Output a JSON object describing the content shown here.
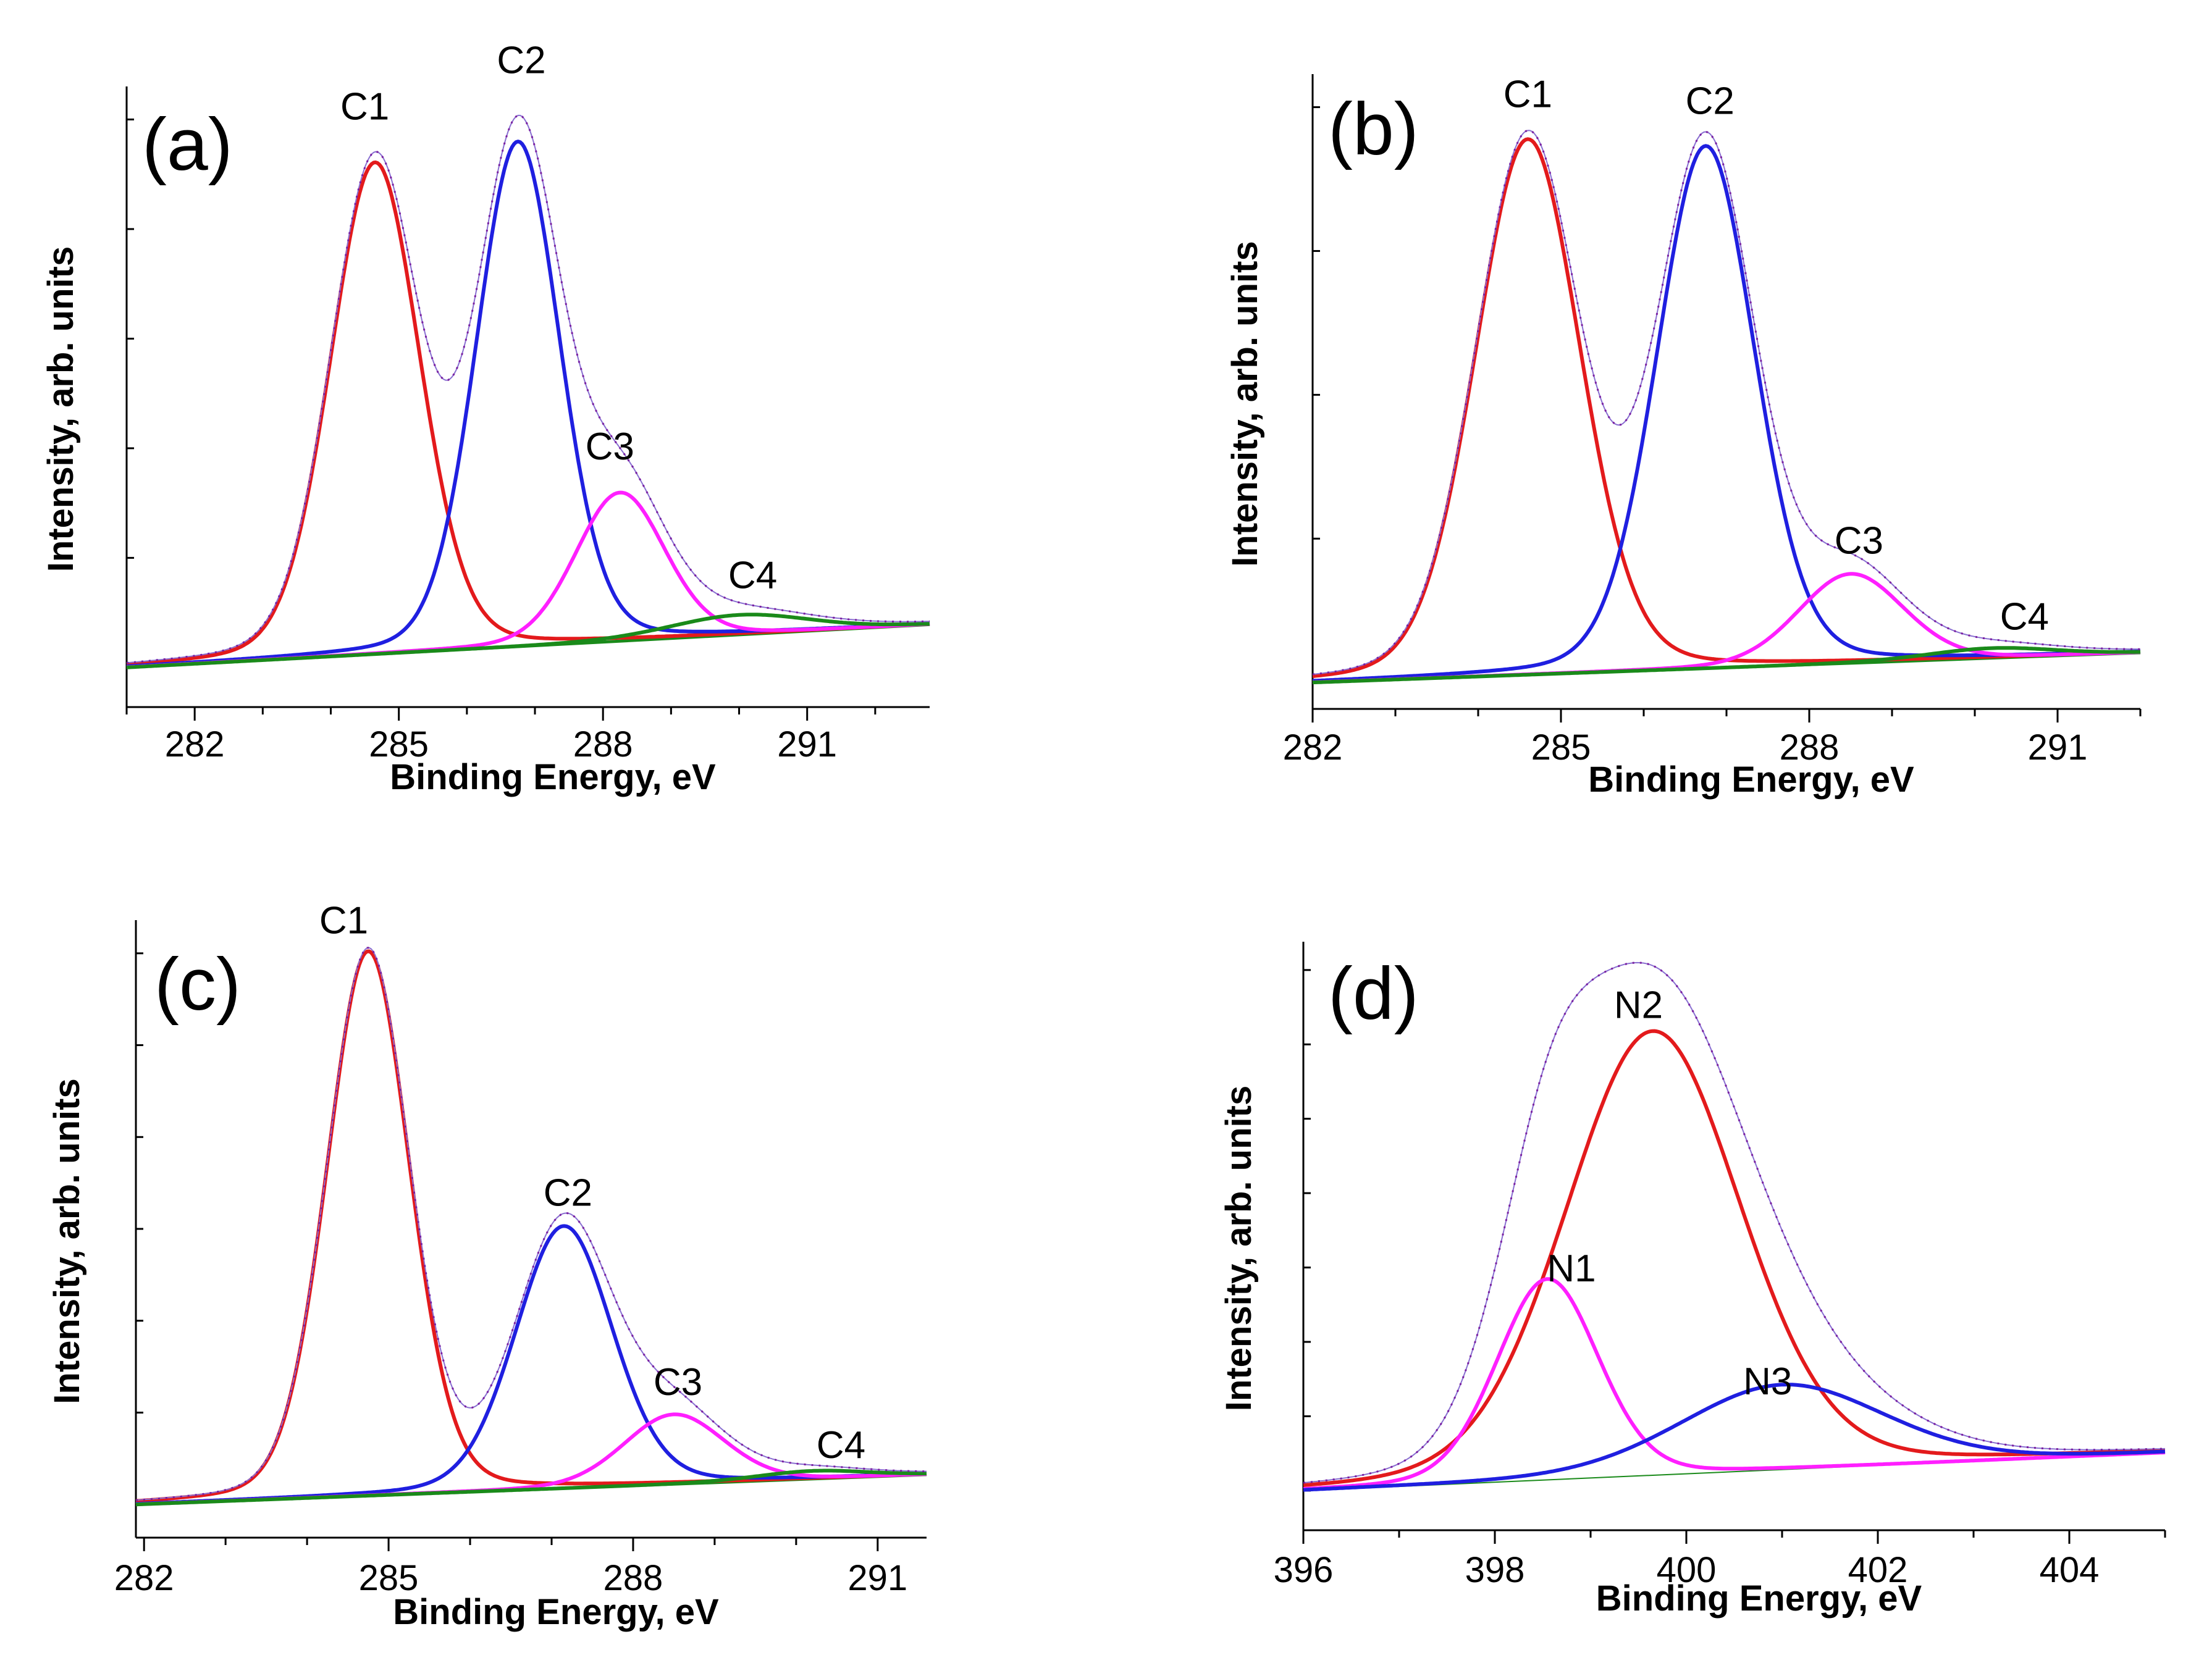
{
  "chart_data": [
    {
      "type": "line",
      "panel_label": "(a)",
      "xlabel": "Binding Energy, eV",
      "ylabel": "Intensity, arb. units",
      "xlim": [
        281.0,
        292.8
      ],
      "ylim": [
        -0.06,
        0.88
      ],
      "x_ticks": [
        282,
        285,
        288,
        291
      ],
      "y_tick_count": 5,
      "background": {
        "x0": 281.0,
        "y0": 0.0,
        "x1": 292.8,
        "y1": 0.065
      },
      "series": [
        {
          "name": "C1",
          "color": "#e31a1c",
          "center": 284.65,
          "height": 0.745,
          "fwhm": 1.55
        },
        {
          "name": "C2",
          "color": "#1f1fe0",
          "center": 286.75,
          "height": 0.765,
          "fwhm": 1.45
        },
        {
          "name": "C3",
          "color": "#ff1fff",
          "center": 288.25,
          "height": 0.225,
          "fwhm": 1.55
        },
        {
          "name": "C4",
          "color": "#1a8a1a",
          "center": 290.0,
          "height": 0.03,
          "fwhm": 2.4
        }
      ],
      "peak_labels": [
        {
          "text": "C1",
          "x": 284.5,
          "y": 0.83
        },
        {
          "text": "C2",
          "x": 286.8,
          "y": 0.9
        },
        {
          "text": "C3",
          "x": 288.1,
          "y": 0.315
        },
        {
          "text": "C4",
          "x": 290.2,
          "y": 0.12
        }
      ]
    },
    {
      "type": "line",
      "panel_label": "(b)",
      "xlabel": "Binding Energy, eV",
      "ylabel": "Intensity, arb. units",
      "xlim": [
        282.0,
        292.0
      ],
      "ylim": [
        -0.04,
        0.92
      ],
      "x_ticks": [
        282,
        285,
        288,
        291
      ],
      "y_tick_count": 4,
      "background": {
        "x0": 282.0,
        "y0": 0.0,
        "x1": 292.0,
        "y1": 0.045
      },
      "series": [
        {
          "name": "C1",
          "color": "#e31a1c",
          "center": 284.6,
          "height": 0.81,
          "fwhm": 1.5
        },
        {
          "name": "C2",
          "color": "#1f1fe0",
          "center": 286.75,
          "height": 0.79,
          "fwhm": 1.4
        },
        {
          "name": "C3",
          "color": "#ff1fff",
          "center": 288.5,
          "height": 0.135,
          "fwhm": 1.5
        },
        {
          "name": "C4",
          "color": "#1a8a1a",
          "center": 290.2,
          "height": 0.015,
          "fwhm": 1.8
        }
      ],
      "peak_labels": [
        {
          "text": "C1",
          "x": 284.6,
          "y": 0.87
        },
        {
          "text": "C2",
          "x": 286.8,
          "y": 0.86
        },
        {
          "text": "C3",
          "x": 288.6,
          "y": 0.195
        },
        {
          "text": "C4",
          "x": 290.6,
          "y": 0.08
        }
      ]
    },
    {
      "type": "line",
      "panel_label": "(c)",
      "xlabel": "Binding Energy, eV",
      "ylabel": "Intensity, arb. units",
      "xlim": [
        281.9,
        291.6
      ],
      "ylim": [
        -0.05,
        0.88
      ],
      "x_ticks": [
        282,
        285,
        288,
        291
      ],
      "y_tick_count": 6,
      "background": {
        "x0": 281.9,
        "y0": 0.0,
        "x1": 291.6,
        "y1": 0.045
      },
      "series": [
        {
          "name": "C1",
          "color": "#e31a1c",
          "center": 284.75,
          "height": 0.82,
          "fwhm": 1.2
        },
        {
          "name": "C2",
          "color": "#1f1fe0",
          "center": 287.15,
          "height": 0.395,
          "fwhm": 1.4
        },
        {
          "name": "C3",
          "color": "#ff1fff",
          "center": 288.5,
          "height": 0.105,
          "fwhm": 1.45
        },
        {
          "name": "C4",
          "color": "#1a8a1a",
          "center": 290.2,
          "height": 0.012,
          "fwhm": 1.6
        }
      ],
      "peak_labels": [
        {
          "text": "C1",
          "x": 284.45,
          "y": 0.86
        },
        {
          "text": "C2",
          "x": 287.2,
          "y": 0.45
        },
        {
          "text": "C3",
          "x": 288.55,
          "y": 0.165
        },
        {
          "text": "C4",
          "x": 290.55,
          "y": 0.07
        }
      ]
    },
    {
      "type": "line",
      "panel_label": "(d)",
      "xlabel": "Binding Energy, eV",
      "ylabel": "Intensity, arb. units",
      "xlim": [
        396.0,
        405.0
      ],
      "ylim": [
        -0.07,
        0.97
      ],
      "x_ticks": [
        396,
        398,
        400,
        402,
        404
      ],
      "y_tick_count": 7,
      "background": {
        "x0": 396.0,
        "y0": 0.0,
        "x1": 405.0,
        "y1": 0.067
      },
      "series": [
        {
          "name": "N2",
          "color": "#e31a1c",
          "center": 399.65,
          "height": 0.785,
          "fwhm": 2.15
        },
        {
          "name": "N1",
          "color": "#ff1fff",
          "center": 398.55,
          "height": 0.355,
          "fwhm": 1.25
        },
        {
          "name": "N3",
          "color": "#1f1fe0",
          "center": 401.0,
          "height": 0.15,
          "fwhm": 2.5
        }
      ],
      "peak_labels": [
        {
          "text": "N2",
          "x": 399.5,
          "y": 0.835
        },
        {
          "text": "N1",
          "x": 398.8,
          "y": 0.37
        },
        {
          "text": "N3",
          "x": 400.85,
          "y": 0.17
        }
      ]
    }
  ]
}
